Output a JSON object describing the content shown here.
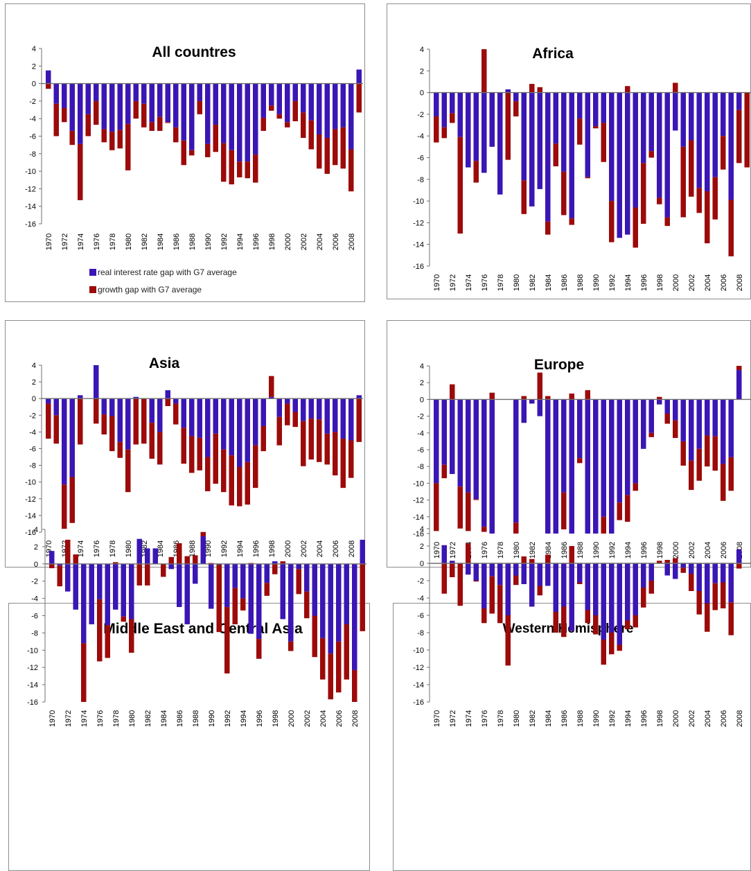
{
  "colors": {
    "rate": "#3a16b4",
    "growth": "#9c0a0a",
    "axis": "#6f6f6f",
    "text": "#000000"
  },
  "legend": [
    {
      "label": "real interest rate gap with G7 average",
      "color": "#3a16b4"
    },
    {
      "label": "growth gap with G7 average",
      "color": "#9c0a0a"
    }
  ],
  "chart_data": [
    {
      "type": "bar",
      "title": "All countres",
      "ylim": [
        -16,
        4
      ],
      "yticks": [
        4,
        2,
        0,
        -2,
        -4,
        -6,
        -8,
        -10,
        -12,
        -14,
        -16
      ],
      "x": [
        1970,
        1971,
        1972,
        1973,
        1974,
        1975,
        1976,
        1977,
        1978,
        1979,
        1980,
        1981,
        1982,
        1983,
        1984,
        1985,
        1986,
        1987,
        1988,
        1989,
        1990,
        1991,
        1992,
        1993,
        1994,
        1995,
        1996,
        1997,
        1998,
        1999,
        2000,
        2001,
        2002,
        2003,
        2004,
        2005,
        2006,
        2007,
        2008,
        2009
      ],
      "xtick_labels": [
        "1970",
        "1972",
        "1974",
        "1976",
        "1978",
        "1980",
        "1982",
        "1984",
        "1986",
        "1988",
        "1990",
        "1992",
        "1994",
        "1996",
        "1998",
        "2000",
        "2002",
        "2004",
        "2006",
        "2008"
      ],
      "legend_position": "bottom",
      "series": [
        {
          "name": "real interest rate gap with G7 average",
          "values": [
            1.5,
            -2.3,
            -2.8,
            -5.4,
            -6.9,
            -3.5,
            -2.0,
            -5.2,
            -5.5,
            -5.3,
            -4.6,
            -2.0,
            -2.3,
            -4.4,
            -3.8,
            -4.4,
            -5.0,
            -6.5,
            -7.6,
            -2.0,
            -6.9,
            -4.7,
            -6.8,
            -7.6,
            -8.9,
            -8.9,
            -8.1,
            -3.9,
            -2.5,
            -3.5,
            -4.4,
            -2.0,
            -3.3,
            -4.2,
            -5.8,
            -6.2,
            -5.2,
            -5.0,
            -7.5,
            1.6
          ]
        },
        {
          "name": "growth gap with G7 average",
          "values": [
            -0.6,
            -3.7,
            -1.6,
            -1.6,
            -6.4,
            -2.5,
            -2.7,
            -1.5,
            -2.1,
            -2.1,
            -5.3,
            -2.0,
            -2.7,
            -1.0,
            -1.6,
            -0.1,
            -1.7,
            -2.8,
            -0.6,
            -1.5,
            -1.5,
            -3.1,
            -4.4,
            -3.9,
            -1.8,
            -1.9,
            -3.2,
            -1.5,
            -0.6,
            -0.5,
            -0.6,
            -2.3,
            -2.9,
            -3.3,
            -3.9,
            -4.1,
            -4.1,
            -4.7,
            -4.8,
            -3.3
          ]
        }
      ]
    },
    {
      "type": "bar",
      "title": "Africa",
      "ylim": [
        -16,
        4
      ],
      "yticks": [
        4,
        2,
        0,
        -2,
        -4,
        -6,
        -8,
        -10,
        -12,
        -14,
        -16
      ],
      "x": [
        1970,
        1971,
        1972,
        1973,
        1974,
        1975,
        1976,
        1977,
        1978,
        1979,
        1980,
        1981,
        1982,
        1983,
        1984,
        1985,
        1986,
        1987,
        1988,
        1989,
        1990,
        1991,
        1992,
        1993,
        1994,
        1995,
        1996,
        1997,
        1998,
        1999,
        2000,
        2001,
        2002,
        2003,
        2004,
        2005,
        2006,
        2007,
        2008,
        2009
      ],
      "xtick_labels": [
        "1970",
        "1972",
        "1974",
        "1976",
        "1978",
        "1980",
        "1982",
        "1984",
        "1986",
        "1988",
        "1990",
        "1992",
        "1994",
        "1996",
        "1998",
        "2000",
        "2002",
        "2004",
        "2006",
        "2008"
      ],
      "series": [
        {
          "name": "real interest rate gap with G7 average",
          "values": [
            -2.2,
            -3.2,
            -1.9,
            -4.1,
            -6.9,
            -6.3,
            -7.4,
            -5.0,
            -9.4,
            0.3,
            -0.8,
            -8.1,
            -10.5,
            -8.9,
            -11.9,
            -4.7,
            -7.3,
            -11.6,
            -2.4,
            -7.8,
            -3.1,
            -2.8,
            -10.0,
            -13.4,
            -13.1,
            -10.6,
            -6.5,
            -5.4,
            -9.7,
            -11.5,
            -3.5,
            -5.0,
            -4.4,
            -8.8,
            -9.1,
            -7.8,
            -4.0,
            -9.9,
            -1.6,
            0
          ]
        },
        {
          "name": "growth gap with G7 average",
          "values": [
            -2.4,
            -1.0,
            -0.9,
            -8.9,
            0,
            -2.0,
            4.0,
            0,
            0,
            -6.2,
            -1.4,
            -3.1,
            0.8,
            0.5,
            -1.2,
            -2.1,
            -4.0,
            -0.6,
            -2.4,
            -0.1,
            -0.2,
            -3.6,
            -3.8,
            0,
            0.6,
            -3.7,
            -5.6,
            -0.6,
            -0.6,
            -0.8,
            0.9,
            -6.5,
            -5.2,
            -2.3,
            -4.8,
            -3.9,
            -3.1,
            -5.2,
            -4.9,
            -6.9
          ]
        }
      ]
    },
    {
      "type": "bar",
      "title": "Asia",
      "ylim": [
        -16,
        4
      ],
      "yticks": [
        4,
        2,
        0,
        -2,
        -4,
        -6,
        -8,
        -10,
        -12,
        -14,
        -16
      ],
      "x": [
        1970,
        1971,
        1972,
        1973,
        1974,
        1975,
        1976,
        1977,
        1978,
        1979,
        1980,
        1981,
        1982,
        1983,
        1984,
        1985,
        1986,
        1987,
        1988,
        1989,
        1990,
        1991,
        1992,
        1993,
        1994,
        1995,
        1996,
        1997,
        1998,
        1999,
        2000,
        2001,
        2002,
        2003,
        2004,
        2005,
        2006,
        2007,
        2008,
        2009
      ],
      "xtick_labels": [
        "1970",
        "1972",
        "1974",
        "1976",
        "1978",
        "1980",
        "1982",
        "1984",
        "1986",
        "1988",
        "1990",
        "1992",
        "1994",
        "1996",
        "1998",
        "2000",
        "2002",
        "2004",
        "2006",
        "2008"
      ],
      "series": [
        {
          "name": "real interest rate gap with G7 average",
          "values": [
            -0.6,
            -2.0,
            -10.3,
            -9.4,
            0.4,
            0,
            4.0,
            -1.9,
            -2.1,
            -5.2,
            -6.1,
            0.2,
            0,
            -2.9,
            -4.0,
            1.0,
            -0.6,
            -3.5,
            -4.5,
            -4.7,
            -7.0,
            -4.2,
            -6.1,
            -6.8,
            -8.2,
            -7.6,
            -5.6,
            -3.3,
            0.2,
            -2.2,
            -0.6,
            -1.6,
            -2.7,
            -2.4,
            -2.5,
            -4.2,
            -4.0,
            -4.8,
            -5.0,
            0.4
          ]
        },
        {
          "name": "growth gap with G7 average",
          "values": [
            -4.2,
            -3.4,
            -5.3,
            -5.5,
            -5.5,
            0,
            -3.0,
            -2.4,
            -4.2,
            -1.9,
            -5.1,
            -5.5,
            -5.4,
            -4.3,
            -3.9,
            -0.9,
            -2.5,
            -4.3,
            -4.4,
            -3.9,
            -4.1,
            -6.0,
            -5.1,
            -6.0,
            -4.7,
            -5.1,
            -5.1,
            -3.0,
            2.5,
            -3.4,
            -2.6,
            -1.8,
            -5.4,
            -4.9,
            -5.1,
            -3.7,
            -5.2,
            -5.9,
            -4.5,
            -5.2
          ]
        }
      ]
    },
    {
      "type": "bar",
      "title": "Europe",
      "ylim": [
        -16,
        4
      ],
      "yticks": [
        4,
        2,
        0,
        -2,
        -4,
        -6,
        -8,
        -10,
        -12,
        -14,
        -16
      ],
      "x": [
        1970,
        1971,
        1972,
        1973,
        1974,
        1975,
        1976,
        1977,
        1978,
        1979,
        1980,
        1981,
        1982,
        1983,
        1984,
        1985,
        1986,
        1987,
        1988,
        1989,
        1990,
        1991,
        1992,
        1993,
        1994,
        1995,
        1996,
        1997,
        1998,
        1999,
        2000,
        2001,
        2002,
        2003,
        2004,
        2005,
        2006,
        2007,
        2008,
        2009
      ],
      "xtick_labels": [
        "1970",
        "1972",
        "1974",
        "1976",
        "1978",
        "1980",
        "1982",
        "1984",
        "1986",
        "1988",
        "1990",
        "1992",
        "1994",
        "1996",
        "1998",
        "2000",
        "2002",
        "2004",
        "2006",
        "2008"
      ],
      "series": [
        {
          "name": "real interest rate gap with G7 average",
          "values": [
            -10.0,
            -7.8,
            -8.9,
            -10.4,
            -11.1,
            -11.9,
            -15.2,
            -16.0,
            0,
            0,
            -14.7,
            -2.8,
            -0.5,
            -2.0,
            -16.0,
            -16.0,
            -11.1,
            -16.0,
            -7.0,
            -16.0,
            -16.0,
            -14.0,
            -16.0,
            -12.3,
            -11.4,
            -10.0,
            -5.9,
            -4.0,
            -0.6,
            -1.7,
            -2.5,
            -5.0,
            -7.3,
            -5.9,
            -4.3,
            -4.4,
            -7.7,
            -6.9,
            3.5,
            0
          ]
        },
        {
          "name": "growth gap with G7 average",
          "values": [
            -5.7,
            -1.6,
            1.8,
            -5.0,
            -4.6,
            -0.1,
            -0.6,
            0.8,
            0,
            0,
            -1.3,
            0.4,
            0,
            3.2,
            0.4,
            0,
            -4.4,
            0.7,
            -0.6,
            1.1,
            -0.2,
            -2.0,
            0,
            -2.1,
            -3.2,
            -0.9,
            0,
            -0.5,
            0.3,
            -1.2,
            -2.1,
            -2.9,
            -3.5,
            -3.8,
            -3.7,
            -4.1,
            -4.4,
            -4.0,
            0.5,
            0
          ]
        }
      ]
    },
    {
      "type": "bar",
      "title": "Middle East and Central Asia",
      "ylim": [
        -16,
        4
      ],
      "yticks": [
        4,
        2,
        0,
        -2,
        -4,
        -6,
        -8,
        -10,
        -12,
        -14,
        -16
      ],
      "x": [
        1970,
        1971,
        1972,
        1973,
        1974,
        1975,
        1976,
        1977,
        1978,
        1979,
        1980,
        1981,
        1982,
        1983,
        1984,
        1985,
        1986,
        1987,
        1988,
        1989,
        1990,
        1991,
        1992,
        1993,
        1994,
        1995,
        1996,
        1997,
        1998,
        1999,
        2000,
        2001,
        2002,
        2003,
        2004,
        2005,
        2006,
        2007,
        2008,
        2009
      ],
      "xtick_labels": [
        "1970",
        "1972",
        "1974",
        "1976",
        "1978",
        "1980",
        "1982",
        "1984",
        "1986",
        "1988",
        "1990",
        "1992",
        "1994",
        "1996",
        "1998",
        "2000",
        "2002",
        "2004",
        "2006",
        "2008"
      ],
      "series": [
        {
          "name": "real interest rate gap with G7 average",
          "values": [
            1.5,
            -0.2,
            -3.2,
            -5.3,
            -9.2,
            -7.0,
            -4.1,
            -7.1,
            -5.3,
            -6.1,
            -6.4,
            2.9,
            1.8,
            1.8,
            0,
            -0.6,
            -5.0,
            -7.0,
            -2.3,
            3.2,
            -5.2,
            -0.1,
            -5.0,
            -2.8,
            -4.0,
            -8.1,
            -8.7,
            -2.2,
            0.3,
            -6.4,
            -9.0,
            -0.6,
            -3.2,
            -6.0,
            -8.6,
            -10.4,
            -9.0,
            -7.0,
            -12.3,
            2.8
          ]
        },
        {
          "name": "growth gap with G7 average",
          "values": [
            -0.5,
            -2.4,
            2.8,
            1.1,
            -6.9,
            0,
            -7.2,
            -3.8,
            0.2,
            -0.6,
            -3.9,
            -2.5,
            -2.5,
            0,
            -1.5,
            0.8,
            2.4,
            0.9,
            1.0,
            0.5,
            0.1,
            -7.8,
            -7.7,
            -4.2,
            -1.4,
            0.1,
            -2.3,
            -1.5,
            -1.2,
            0.3,
            -1.1,
            -2.9,
            -3.1,
            -4.8,
            -4.8,
            -5.3,
            -5.9,
            -6.4,
            -3.9,
            -7.8
          ]
        }
      ]
    },
    {
      "type": "bar",
      "title": "Western Hemisphere",
      "ylim": [
        -16,
        4
      ],
      "yticks": [
        4,
        2,
        0,
        -2,
        -4,
        -6,
        -8,
        -10,
        -12,
        -14,
        -16
      ],
      "x": [
        1970,
        1971,
        1972,
        1973,
        1974,
        1975,
        1976,
        1977,
        1978,
        1979,
        1980,
        1981,
        1982,
        1983,
        1984,
        1985,
        1986,
        1987,
        1988,
        1989,
        1990,
        1991,
        1992,
        1993,
        1994,
        1995,
        1996,
        1997,
        1998,
        1999,
        2000,
        2001,
        2002,
        2003,
        2004,
        2005,
        2006,
        2007,
        2008,
        2009
      ],
      "xtick_labels": [
        "1970",
        "1972",
        "1974",
        "1976",
        "1978",
        "1980",
        "1982",
        "1984",
        "1986",
        "1988",
        "1990",
        "1992",
        "1994",
        "1996",
        "1998",
        "2000",
        "2002",
        "2004",
        "2006",
        "2008"
      ],
      "series": [
        {
          "name": "real interest rate gap with G7 average",
          "values": [
            0,
            2.1,
            0.3,
            0,
            -1.3,
            -2.0,
            -5.2,
            -1.5,
            -2.5,
            -6.0,
            -1.4,
            -2.4,
            -5.0,
            -2.6,
            -2.6,
            -5.6,
            -5.0,
            -7.8,
            -2.2,
            -5.4,
            -6.0,
            -8.8,
            -8.0,
            -9.4,
            -6.6,
            -6.0,
            -2.8,
            -2.0,
            0,
            -1.4,
            -1.8,
            -0.5,
            -1.2,
            -3.2,
            -4.6,
            -2.3,
            -2.2,
            -4.5,
            1.6,
            0
          ]
        },
        {
          "name": "growth gap with G7 average",
          "values": [
            0,
            -3.5,
            -1.6,
            -4.9,
            2.3,
            -0.1,
            -1.7,
            -4.3,
            -4.4,
            -5.8,
            -1.1,
            0.8,
            0.5,
            -1.1,
            1.0,
            -2.4,
            -3.5,
            2.0,
            -0.2,
            -1.5,
            -2.2,
            -2.9,
            -2.5,
            -0.7,
            -1.0,
            -1.4,
            -2.3,
            -1.5,
            0.3,
            0.4,
            0.6,
            -0.6,
            -2.0,
            -2.7,
            -3.3,
            -3.1,
            -3.0,
            -3.8,
            -0.6,
            0
          ]
        }
      ]
    }
  ]
}
